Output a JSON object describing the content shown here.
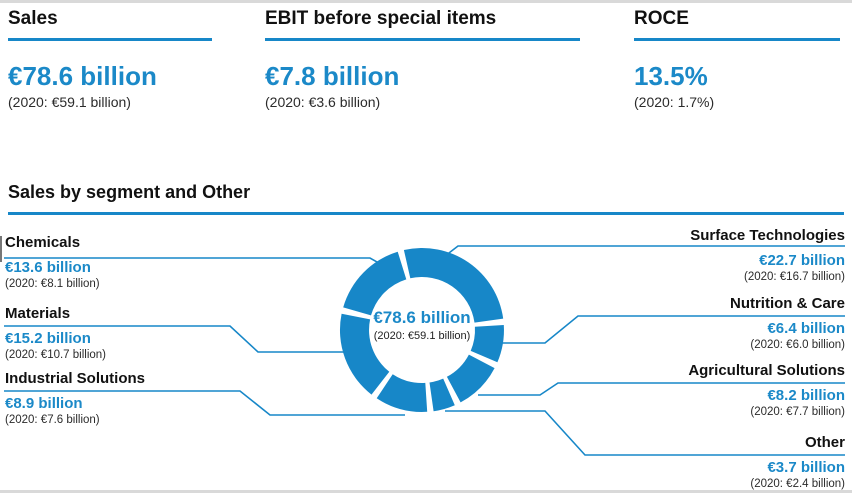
{
  "accent_color": "#1787c8",
  "value_text_color": "#1b89c8",
  "kpis": [
    {
      "label": "Sales",
      "value": "€78.6 billion",
      "prior": "(2020: €59.1 billion)"
    },
    {
      "label": "EBIT before special items",
      "value": "€7.8 billion",
      "prior": "(2020: €3.6 billion)"
    },
    {
      "label": "ROCE",
      "value": "13.5%",
      "prior": "(2020: 1.7%)"
    }
  ],
  "section_title": "Sales by segment and Other",
  "chart_data": {
    "type": "pie",
    "subtype": "donut",
    "title": "Sales by segment and Other",
    "unit": "EUR billion",
    "total": 78.6,
    "prior_total": 59.1,
    "center": {
      "value": "€78.6 billion",
      "prior": "(2020: €59.1 billion)"
    },
    "segments": [
      {
        "name": "Chemicals",
        "value": 13.6,
        "prior_value": 8.1,
        "value_label": "€13.6 billion",
        "prior_label": "(2020: €8.1 billion)",
        "side": "left"
      },
      {
        "name": "Materials",
        "value": 15.2,
        "prior_value": 10.7,
        "value_label": "€15.2 billion",
        "prior_label": "(2020: €10.7 billion)",
        "side": "left"
      },
      {
        "name": "Industrial Solutions",
        "value": 8.9,
        "prior_value": 7.6,
        "value_label": "€8.9 billion",
        "prior_label": "(2020: €7.6 billion)",
        "side": "left"
      },
      {
        "name": "Surface Technologies",
        "value": 22.7,
        "prior_value": 16.7,
        "value_label": "€22.7 billion",
        "prior_label": "(2020: €16.7 billion)",
        "side": "right"
      },
      {
        "name": "Nutrition & Care",
        "value": 6.4,
        "prior_value": 6.0,
        "value_label": "€6.4 billion",
        "prior_label": "(2020: €6.0 billion)",
        "side": "right"
      },
      {
        "name": "Agricultural Solutions",
        "value": 8.2,
        "prior_value": 7.7,
        "value_label": "€8.2 billion",
        "prior_label": "(2020: €7.7 billion)",
        "side": "right"
      },
      {
        "name": "Other",
        "value": 3.7,
        "prior_value": 2.4,
        "value_label": "€3.7 billion",
        "prior_label": "(2020: €2.4 billion)",
        "side": "right"
      }
    ],
    "donut_order_clockwise_from_top": [
      "Surface Technologies",
      "Nutrition & Care",
      "Agricultural Solutions",
      "Other",
      "Industrial Solutions",
      "Materials",
      "Chemicals"
    ],
    "legend_position": "callout-labels",
    "grid": false
  }
}
